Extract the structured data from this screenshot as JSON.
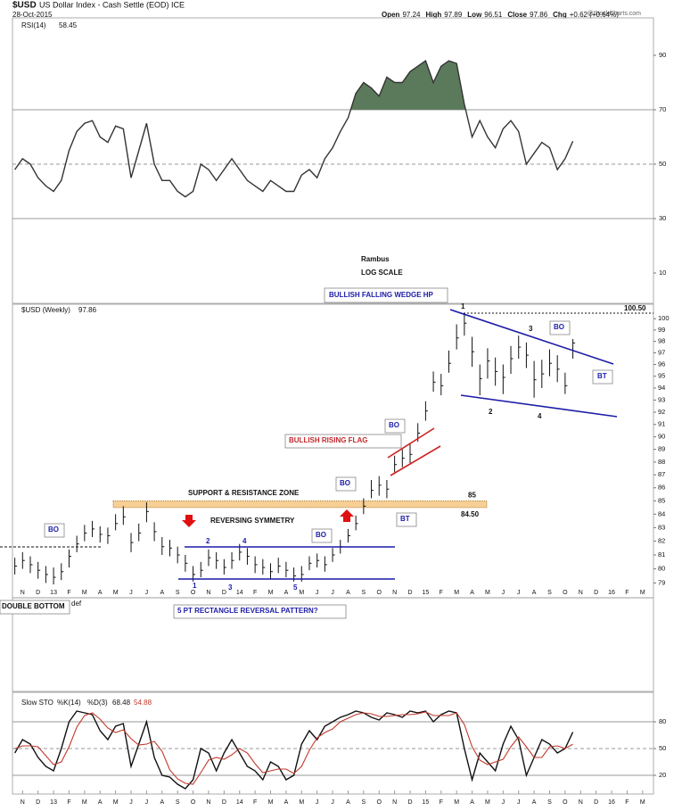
{
  "header": {
    "symbol": "$USD",
    "name": "US Dollar Index - Cash Settle (EOD) ICE",
    "date": "28-Oct-2015",
    "quote": [
      {
        "label": "Open",
        "value": 97.24
      },
      {
        "label": "High",
        "value": 97.89
      },
      {
        "label": "Low",
        "value": 96.51
      },
      {
        "label": "Close",
        "value": 97.86
      },
      {
        "label": "Chg",
        "value": "+0.62 (+0.64%)"
      }
    ],
    "source": "@StockCharts.com"
  },
  "annotations": {
    "author": "Rambus",
    "scale_note": "LOG SCALE",
    "wedge": "BULLISH FALLING WEDGE HP",
    "flag": "BULLISH RISING FLAG",
    "zone": "SUPPORT & RESISTANCE ZONE",
    "symmetry": "REVERSING SYMMETRY",
    "rectangle": "5 PT RECTANGLE REVERSAL PATTERN?",
    "double_bottom": "DOUBLE BOTTOM",
    "cut_text": "def",
    "breakout": "BO",
    "backtest": "BT",
    "wedge_points": [
      "1",
      "2",
      "3",
      "4"
    ],
    "rectangle_points": [
      "1",
      "2",
      "3",
      "4",
      "5"
    ]
  },
  "chart_data": {
    "type": "ohlc",
    "name": "$USD (Weekly)",
    "color": "#111111",
    "log_scale": true,
    "xlim": [
      -0.65,
      40.7
    ],
    "xticks": [
      {
        "value": 0,
        "label": "N"
      },
      {
        "value": 1,
        "label": "D"
      },
      {
        "value": 2,
        "label": "13"
      },
      {
        "value": 3,
        "label": "F"
      },
      {
        "value": 4,
        "label": "M"
      },
      {
        "value": 5,
        "label": "A"
      },
      {
        "value": 6,
        "label": "M"
      },
      {
        "value": 7,
        "label": "J"
      },
      {
        "value": 8,
        "label": "J"
      },
      {
        "value": 9,
        "label": "A"
      },
      {
        "value": 10,
        "label": "S"
      },
      {
        "value": 11,
        "label": "O"
      },
      {
        "value": 12,
        "label": "N"
      },
      {
        "value": 13,
        "label": "D"
      },
      {
        "value": 14,
        "label": "14"
      },
      {
        "value": 15,
        "label": "F"
      },
      {
        "value": 16,
        "label": "M"
      },
      {
        "value": 17,
        "label": "A"
      },
      {
        "value": 18,
        "label": "M"
      },
      {
        "value": 19,
        "label": "J"
      },
      {
        "value": 20,
        "label": "J"
      },
      {
        "value": 21,
        "label": "A"
      },
      {
        "value": 22,
        "label": "S"
      },
      {
        "value": 23,
        "label": "O"
      },
      {
        "value": 24,
        "label": "N"
      },
      {
        "value": 25,
        "label": "D"
      },
      {
        "value": 26,
        "label": "15"
      },
      {
        "value": 27,
        "label": "F"
      },
      {
        "value": 28,
        "label": "M"
      },
      {
        "value": 29,
        "label": "A"
      },
      {
        "value": 30,
        "label": "M"
      },
      {
        "value": 31,
        "label": "J"
      },
      {
        "value": 32,
        "label": "J"
      },
      {
        "value": 33,
        "label": "A"
      },
      {
        "value": 34,
        "label": "S"
      },
      {
        "value": 35,
        "label": "O"
      },
      {
        "value": 36,
        "label": "N"
      },
      {
        "value": 37,
        "label": "D"
      },
      {
        "value": 38,
        "label": "16"
      },
      {
        "value": 39,
        "label": "F"
      },
      {
        "value": 40,
        "label": "M"
      }
    ],
    "x": [
      -0.5,
      0,
      0.5,
      1,
      1.5,
      2,
      2.5,
      3,
      3.5,
      4,
      4.5,
      5,
      5.5,
      6,
      6.5,
      7,
      7.5,
      8,
      8.5,
      9,
      9.5,
      10,
      10.5,
      11,
      11.5,
      12,
      12.5,
      13,
      13.5,
      14,
      14.5,
      15,
      15.5,
      16,
      16.5,
      17,
      17.5,
      18,
      18.5,
      19,
      19.5,
      20,
      20.5,
      21,
      21.5,
      22,
      22.5,
      23,
      23.5,
      24,
      24.5,
      25,
      25.5,
      26,
      26.5,
      27,
      27.5,
      28,
      28.5,
      29,
      29.5,
      30,
      30.5,
      31,
      31.5,
      32,
      32.5,
      33,
      33.5,
      34,
      34.5,
      35,
      35.5
    ],
    "high": [
      80.8,
      81.2,
      80.9,
      80.5,
      80.2,
      80.1,
      80.4,
      81.4,
      82.4,
      83.2,
      83.5,
      83.1,
      83.0,
      84.0,
      84.6,
      82.6,
      83.3,
      84.9,
      83.4,
      82.3,
      82.1,
      81.6,
      81.0,
      80.2,
      80.5,
      81.4,
      81.2,
      80.7,
      81.2,
      81.8,
      81.5,
      80.9,
      80.7,
      80.4,
      80.8,
      80.5,
      80.1,
      80.2,
      80.9,
      81.1,
      80.9,
      81.5,
      82.1,
      82.9,
      83.9,
      85.2,
      86.6,
      86.9,
      86.6,
      88.5,
      89.0,
      89.4,
      91.1,
      92.9,
      95.4,
      95.2,
      97.2,
      99.5,
      100.4,
      98.4,
      96.0,
      97.4,
      96.6,
      96.0,
      97.6,
      98.5,
      97.9,
      96.3,
      96.4,
      97.3,
      96.8,
      95.3,
      98.2
    ],
    "low": [
      79.6,
      80.0,
      79.7,
      79.3,
      79.0,
      78.9,
      79.2,
      80.1,
      81.2,
      82.0,
      82.3,
      81.9,
      81.8,
      82.8,
      83.2,
      81.2,
      82.0,
      83.4,
      82.0,
      81.0,
      80.9,
      80.4,
      79.8,
      79.1,
      79.4,
      80.2,
      80.0,
      79.6,
      80.0,
      80.6,
      80.3,
      79.7,
      79.6,
      79.3,
      79.7,
      79.4,
      79.1,
      79.1,
      79.9,
      80.1,
      79.8,
      80.5,
      81.1,
      81.9,
      82.8,
      84.0,
      85.2,
      85.4,
      85.2,
      87.2,
      87.6,
      87.9,
      89.6,
      91.3,
      93.7,
      93.4,
      95.3,
      97.3,
      98.5,
      95.8,
      93.4,
      94.8,
      94.2,
      93.5,
      95.2,
      96.5,
      95.7,
      93.2,
      94.0,
      95.0,
      94.5,
      93.5,
      96.5
    ],
    "close": [
      80.2,
      80.6,
      80.3,
      79.9,
      79.6,
      79.4,
      79.8,
      80.9,
      81.8,
      82.6,
      82.9,
      82.5,
      82.4,
      83.3,
      83.8,
      81.9,
      82.6,
      84.2,
      82.7,
      81.6,
      81.5,
      81.0,
      80.4,
      79.6,
      79.9,
      80.8,
      80.6,
      80.1,
      80.6,
      81.2,
      80.9,
      80.3,
      80.1,
      79.8,
      80.2,
      79.9,
      79.5,
      79.6,
      80.4,
      80.6,
      80.3,
      81.0,
      81.6,
      82.4,
      83.3,
      84.6,
      85.8,
      86.2,
      85.9,
      87.8,
      88.3,
      88.6,
      90.3,
      92.1,
      94.5,
      94.2,
      96.1,
      98.3,
      99.6,
      97.1,
      94.8,
      96.3,
      95.4,
      94.9,
      96.5,
      97.5,
      96.8,
      94.7,
      95.2,
      96.1,
      95.6,
      94.2,
      97.86
    ],
    "ylim": [
      78.4,
      101.3
    ],
    "yticks": [
      79,
      80,
      81,
      82,
      83,
      84,
      85,
      86,
      87,
      88,
      89,
      90,
      91,
      92,
      93,
      94,
      95,
      96,
      97,
      98,
      99,
      100
    ],
    "levels": [
      {
        "value": 100.5,
        "label": "100.50"
      },
      85,
      {
        "value": 84.5,
        "label": "84.50"
      }
    ],
    "indicators": [
      {
        "type": "line",
        "name": "RSI(14)",
        "ylim": [
          0,
          100
        ],
        "yticks": [
          90,
          70,
          50,
          30,
          10
        ],
        "fill_above": 70,
        "fill_color": "#5b7a5b",
        "reference_lines": [
          {
            "value": 70,
            "style": "solid"
          },
          {
            "value": 50,
            "style": "dashed"
          },
          {
            "value": 30,
            "style": "solid"
          }
        ],
        "series": [
          {
            "name": "RSI(14)",
            "color": "#333333",
            "values": [
              48,
              52,
              50,
              45,
              42,
              40,
              44,
              55,
              62,
              65,
              66,
              60,
              58,
              64,
              63,
              45,
              55,
              65,
              50,
              44,
              44,
              40,
              38,
              40,
              50,
              48,
              44,
              48,
              52,
              48,
              44,
              42,
              40,
              44,
              42,
              40,
              40,
              46,
              48,
              45,
              52,
              56,
              62,
              67,
              76,
              80,
              78,
              75,
              82,
              80,
              80,
              84,
              86,
              88,
              80,
              86,
              88,
              87,
              72,
              60,
              66,
              60,
              56,
              63,
              66,
              62,
              50,
              54,
              58,
              56,
              48,
              52,
              58.45
            ]
          }
        ]
      },
      {
        "type": "line",
        "name": "Slow STO",
        "ylim": [
          0,
          100
        ],
        "yticks": [
          80,
          50,
          20
        ],
        "reference_lines": [
          {
            "value": 80,
            "style": "solid"
          },
          {
            "value": 50,
            "style": "dashed"
          },
          {
            "value": 20,
            "style": "solid"
          }
        ],
        "series": [
          {
            "name": "%K(14)",
            "color": "#111111",
            "values": [
              45,
              60,
              55,
              40,
              30,
              25,
              50,
              80,
              92,
              90,
              88,
              70,
              60,
              75,
              78,
              30,
              55,
              80,
              40,
              20,
              18,
              10,
              5,
              15,
              50,
              45,
              25,
              45,
              60,
              45,
              30,
              25,
              15,
              35,
              30,
              15,
              20,
              55,
              70,
              60,
              75,
              80,
              85,
              88,
              92,
              90,
              85,
              82,
              90,
              88,
              85,
              92,
              90,
              92,
              80,
              88,
              92,
              90,
              50,
              15,
              45,
              35,
              25,
              55,
              75,
              60,
              20,
              40,
              60,
              55,
              45,
              50,
              68.48
            ]
          },
          {
            "name": "%D(3)",
            "color": "#c0392b",
            "values": [
              50,
              53,
              53,
              52,
              42,
              32,
              35,
              52,
              74,
              87,
              90,
              83,
              73,
              68,
              71,
              61,
              54,
              55,
              58,
              47,
              26,
              16,
              11,
              10,
              23,
              37,
              40,
              38,
              43,
              50,
              45,
              33,
              23,
              25,
              27,
              27,
              22,
              30,
              48,
              62,
              68,
              72,
              80,
              84,
              88,
              90,
              89,
              86,
              86,
              87,
              88,
              88,
              89,
              91,
              87,
              87,
              87,
              90,
              77,
              52,
              37,
              32,
              35,
              38,
              52,
              63,
              52,
              40,
              40,
              52,
              53,
              50,
              54.88
            ]
          }
        ]
      }
    ]
  }
}
